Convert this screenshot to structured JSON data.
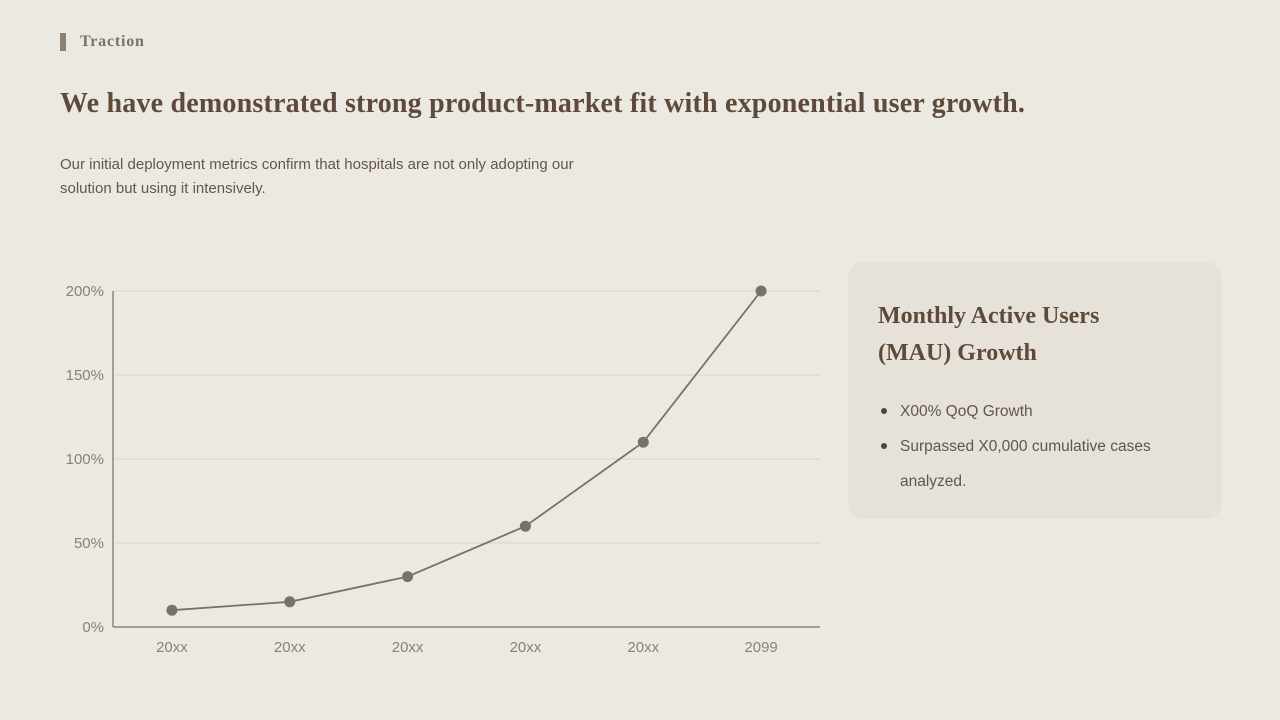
{
  "eyebrow": {
    "label": "Traction"
  },
  "header": {
    "title": "We have demonstrated strong product-market fit with exponential user growth.",
    "subtitle": "Our initial deployment metrics confirm that hospitals are not only adopting our solution but using it intensively."
  },
  "chart_data": {
    "type": "line",
    "title": "",
    "xlabel": "",
    "ylabel": "",
    "categories": [
      "20xx",
      "20xx",
      "20xx",
      "20xx",
      "20xx",
      "2099"
    ],
    "values": [
      10,
      15,
      30,
      60,
      110,
      200
    ],
    "series_name": "Monthly Active Users (MAU) Growth",
    "ylim": [
      0,
      200
    ],
    "yticks": [
      0,
      50,
      100,
      150,
      200
    ],
    "ytick_labels": [
      "0%",
      "50%",
      "100%",
      "150%",
      "200%"
    ],
    "grid": "horizontal",
    "legend": "none",
    "markers": "filled-circle",
    "colors": {
      "line": "#7B7266",
      "point": "#7B7266",
      "grid": "#DAD5CC",
      "axis": "#8F8679",
      "tick_text": "#8A8177"
    }
  },
  "card": {
    "title_line1": "Monthly Active Users",
    "title_line2": "(MAU) Growth",
    "bullets": [
      "X00% QoQ Growth",
      "Surpassed X0,000 cumulative cases analyzed."
    ]
  },
  "colors": {
    "background": "#ECE9E2",
    "card_background": "#E7E2D9",
    "title_text": "#5D4A3A",
    "body_text": "#66564A",
    "bullet_text": "#60564B",
    "bullet_dot": "#4F463E",
    "eyebrow_text": "#7B7165",
    "eyebrow_bar": "#8C8071"
  }
}
